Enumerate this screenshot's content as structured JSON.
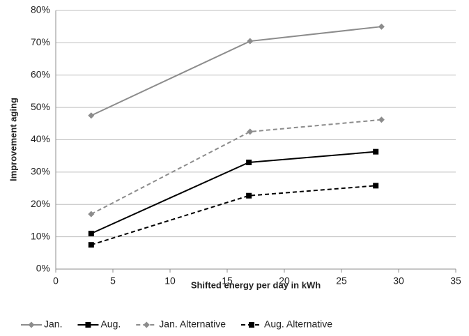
{
  "chart_data": {
    "type": "line",
    "xlabel": "Shifted energy per day in kWh",
    "ylabel": "Improvement aging",
    "xlim": [
      0,
      35
    ],
    "xticks": [
      0,
      5,
      10,
      15,
      20,
      25,
      30,
      35
    ],
    "ylim": [
      0,
      80
    ],
    "yticks": [
      {
        "value": 0,
        "label": "0%"
      },
      {
        "value": 10,
        "label": "10%"
      },
      {
        "value": 20,
        "label": "20%"
      },
      {
        "value": 30,
        "label": "30%"
      },
      {
        "value": 40,
        "label": "40%"
      },
      {
        "value": 50,
        "label": "50%"
      },
      {
        "value": 60,
        "label": "60%"
      },
      {
        "value": 70,
        "label": "70%"
      },
      {
        "value": 80,
        "label": "80%"
      }
    ],
    "grid": true,
    "legend": "bottom",
    "series": [
      {
        "name": "Jan.",
        "color": "#8c8c8c",
        "dashed": false,
        "marker": "diamond",
        "x": [
          3.1,
          17,
          28.5
        ],
        "values": [
          47.5,
          70.5,
          75
        ]
      },
      {
        "name": "Aug.",
        "color": "#000000",
        "dashed": false,
        "marker": "square",
        "x": [
          3.1,
          16.9,
          28
        ],
        "values": [
          11,
          33,
          36.3
        ]
      },
      {
        "name": "Jan. Alternative",
        "color": "#8c8c8c",
        "dashed": true,
        "marker": "diamond",
        "x": [
          3.1,
          17,
          28.5
        ],
        "values": [
          17,
          42.5,
          46.2
        ]
      },
      {
        "name": "Aug. Alternative",
        "color": "#000000",
        "dashed": true,
        "marker": "square",
        "x": [
          3.1,
          16.9,
          28
        ],
        "values": [
          7.5,
          22.7,
          25.8
        ]
      }
    ]
  }
}
